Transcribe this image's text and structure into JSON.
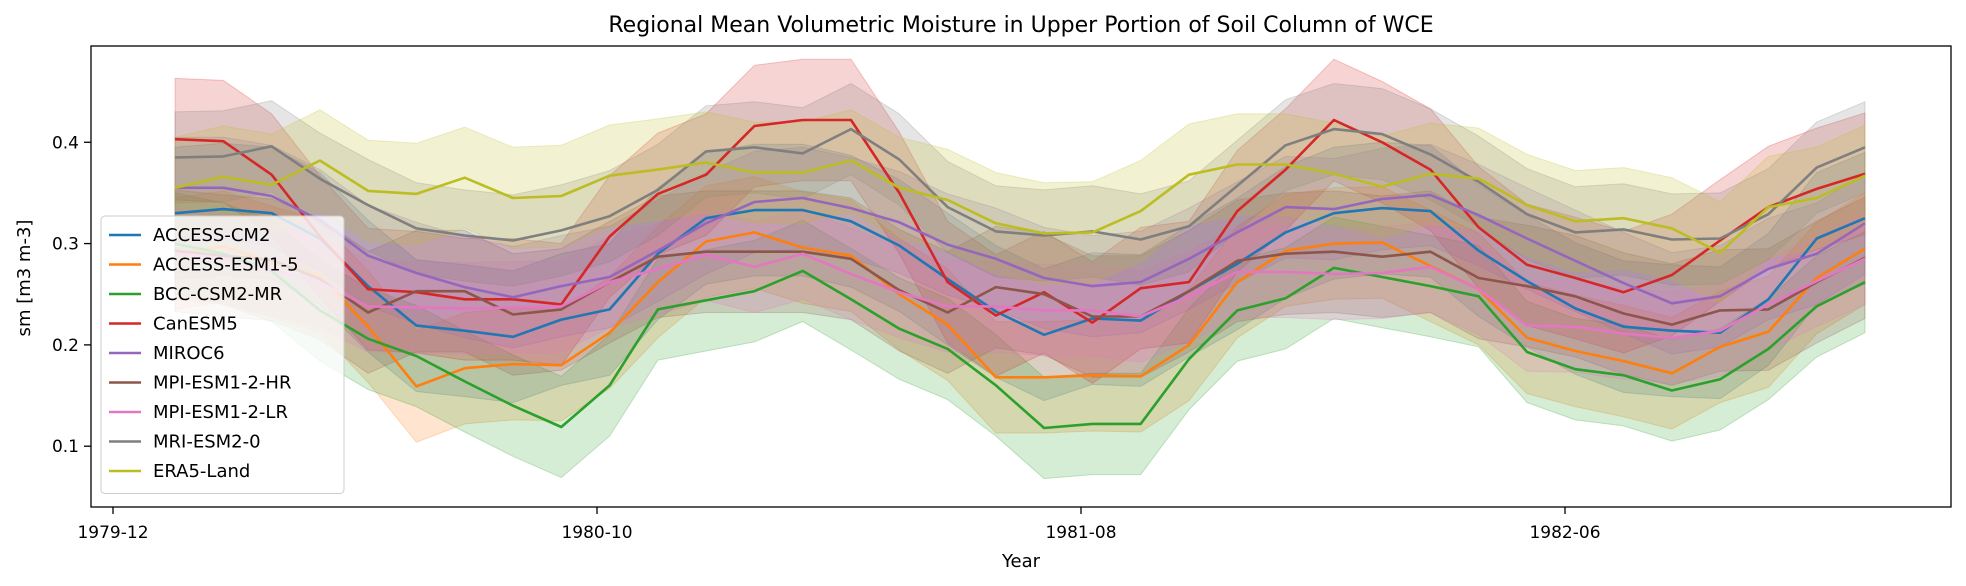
{
  "chart_data": {
    "type": "line",
    "title": "Regional Mean Volumetric Moisture in Upper Portion of Soil Column of WCE",
    "xlabel": "Year",
    "ylabel": "sm [m3 m-3]",
    "x_start": "1980-01",
    "x_tick_labels": [
      "1979-12",
      "1980-10",
      "1981-08",
      "1982-06"
    ],
    "x_tick_months": [
      0,
      10,
      20,
      30
    ],
    "ylim": [
      0.04,
      0.495
    ],
    "y_ticks": [
      0.1,
      0.2,
      0.3,
      0.4
    ],
    "grid": false,
    "legend_position": "lower left",
    "band": "shaded spread around each series",
    "series": [
      {
        "name": "ACCESS-CM2",
        "color": "#1f77b4",
        "values": [
          0.33,
          0.334,
          0.33,
          0.305,
          0.258,
          0.219,
          0.214,
          0.208,
          0.225,
          0.235,
          0.29,
          0.325,
          0.333,
          0.333,
          0.322,
          0.298,
          0.265,
          0.233,
          0.21,
          0.226,
          0.224,
          0.253,
          0.28,
          0.311,
          0.33,
          0.335,
          0.332,
          0.293,
          0.263,
          0.236,
          0.218,
          0.214,
          0.212,
          0.245,
          0.305,
          0.325
        ]
      },
      {
        "name": "ACCESS-ESM1-5",
        "color": "#ff7f0e",
        "values": [
          0.29,
          0.297,
          0.282,
          0.268,
          0.218,
          0.159,
          0.177,
          0.181,
          0.18,
          0.212,
          0.262,
          0.302,
          0.311,
          0.296,
          0.288,
          0.25,
          0.22,
          0.168,
          0.168,
          0.17,
          0.169,
          0.2,
          0.262,
          0.293,
          0.3,
          0.301,
          0.278,
          0.255,
          0.207,
          0.194,
          0.184,
          0.172,
          0.198,
          0.213,
          0.266,
          0.295
        ]
      },
      {
        "name": "BCC-CSM2-MR",
        "color": "#2ca02c",
        "values": [
          0.3,
          0.29,
          0.273,
          0.234,
          0.206,
          0.189,
          0.164,
          0.14,
          0.119,
          0.16,
          0.235,
          0.244,
          0.253,
          0.273,
          0.245,
          0.216,
          0.196,
          0.16,
          0.118,
          0.122,
          0.122,
          0.186,
          0.234,
          0.246,
          0.276,
          0.267,
          0.258,
          0.248,
          0.193,
          0.176,
          0.17,
          0.155,
          0.166,
          0.196,
          0.238,
          0.262
        ]
      },
      {
        "name": "CanESM5",
        "color": "#d62728",
        "values": [
          0.403,
          0.401,
          0.368,
          0.307,
          0.255,
          0.252,
          0.245,
          0.245,
          0.24,
          0.307,
          0.349,
          0.368,
          0.416,
          0.422,
          0.422,
          0.35,
          0.262,
          0.229,
          0.252,
          0.222,
          0.256,
          0.262,
          0.332,
          0.373,
          0.422,
          0.4,
          0.373,
          0.316,
          0.279,
          0.266,
          0.252,
          0.269,
          0.303,
          0.336,
          0.354,
          0.369
        ]
      },
      {
        "name": "MIROC6",
        "color": "#9467bd",
        "values": [
          0.355,
          0.355,
          0.347,
          0.323,
          0.288,
          0.271,
          0.257,
          0.247,
          0.258,
          0.267,
          0.293,
          0.32,
          0.341,
          0.345,
          0.335,
          0.321,
          0.299,
          0.285,
          0.266,
          0.258,
          0.262,
          0.285,
          0.311,
          0.336,
          0.334,
          0.344,
          0.348,
          0.328,
          0.305,
          0.283,
          0.261,
          0.241,
          0.248,
          0.275,
          0.29,
          0.32
        ]
      },
      {
        "name": "MPI-ESM1-2-HR",
        "color": "#8c564b",
        "values": [
          0.293,
          0.288,
          0.284,
          0.265,
          0.232,
          0.253,
          0.253,
          0.23,
          0.235,
          0.262,
          0.287,
          0.292,
          0.292,
          0.292,
          0.285,
          0.254,
          0.232,
          0.257,
          0.25,
          0.228,
          0.228,
          0.253,
          0.283,
          0.29,
          0.292,
          0.287,
          0.292,
          0.266,
          0.258,
          0.248,
          0.231,
          0.22,
          0.234,
          0.235,
          0.262,
          0.286
        ]
      },
      {
        "name": "MPI-ESM1-2-LR",
        "color": "#e377c2",
        "values": [
          0.29,
          0.285,
          0.274,
          0.262,
          0.238,
          0.237,
          0.236,
          0.237,
          0.238,
          0.262,
          0.275,
          0.289,
          0.277,
          0.29,
          0.27,
          0.252,
          0.238,
          0.238,
          0.234,
          0.234,
          0.228,
          0.248,
          0.272,
          0.272,
          0.27,
          0.271,
          0.277,
          0.255,
          0.219,
          0.218,
          0.211,
          0.207,
          0.214,
          0.24,
          0.263,
          0.285
        ]
      },
      {
        "name": "MRI-ESM2-0",
        "color": "#7f7f7f",
        "values": [
          0.385,
          0.386,
          0.396,
          0.364,
          0.338,
          0.315,
          0.308,
          0.303,
          0.313,
          0.327,
          0.353,
          0.391,
          0.395,
          0.389,
          0.413,
          0.383,
          0.336,
          0.312,
          0.308,
          0.312,
          0.304,
          0.317,
          0.357,
          0.397,
          0.413,
          0.408,
          0.388,
          0.361,
          0.329,
          0.311,
          0.314,
          0.304,
          0.305,
          0.329,
          0.375,
          0.395
        ]
      },
      {
        "name": "ERA5-Land",
        "color": "#bcbd22",
        "values": [
          0.355,
          0.366,
          0.358,
          0.382,
          0.352,
          0.349,
          0.365,
          0.345,
          0.347,
          0.367,
          0.373,
          0.38,
          0.37,
          0.37,
          0.382,
          0.355,
          0.343,
          0.32,
          0.31,
          0.311,
          0.332,
          0.368,
          0.378,
          0.378,
          0.369,
          0.356,
          0.369,
          0.364,
          0.338,
          0.322,
          0.325,
          0.315,
          0.291,
          0.336,
          0.345,
          0.367
        ]
      }
    ]
  }
}
